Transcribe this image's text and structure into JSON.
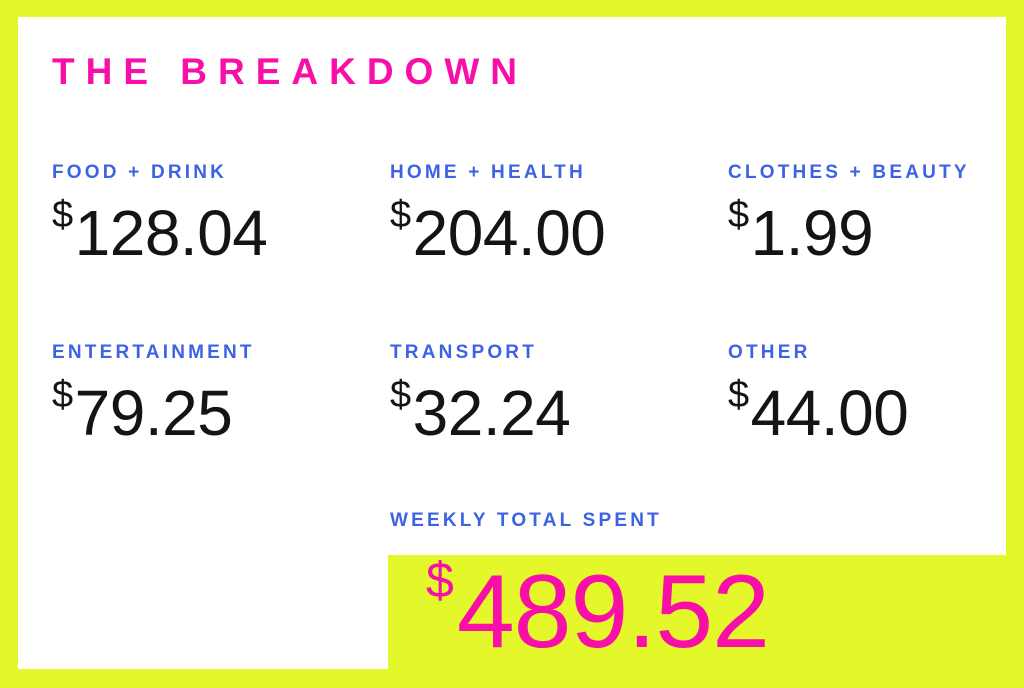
{
  "page": {
    "title": "THE BREAKDOWN",
    "background_color": "#E3F72B",
    "card_color": "#FFFFFF",
    "accent_pink": "#F70FA8",
    "accent_blue": "#3D63E4",
    "amount_color": "#141414",
    "currency": "$"
  },
  "cells": [
    {
      "label": "FOOD + DRINK",
      "currency": "$",
      "amount": "128.04"
    },
    {
      "label": "HOME + HEALTH",
      "currency": "$",
      "amount": "204.00"
    },
    {
      "label": "CLOTHES + BEAUTY",
      "currency": "$",
      "amount": "1.99"
    },
    {
      "label": "ENTERTAINMENT",
      "currency": "$",
      "amount": "79.25"
    },
    {
      "label": "TRANSPORT",
      "currency": "$",
      "amount": "32.24"
    },
    {
      "label": "OTHER",
      "currency": "$",
      "amount": "44.00"
    }
  ],
  "total": {
    "label": "WEEKLY TOTAL SPENT",
    "currency": "$",
    "amount": "489.52"
  },
  "chart_data": {
    "type": "table",
    "title": "THE BREAKDOWN",
    "categories": [
      "FOOD + DRINK",
      "HOME + HEALTH",
      "CLOTHES + BEAUTY",
      "ENTERTAINMENT",
      "TRANSPORT",
      "OTHER"
    ],
    "values": [
      128.04,
      204.0,
      1.99,
      79.25,
      32.24,
      44.0
    ],
    "currency": "$",
    "total_label": "WEEKLY TOTAL SPENT",
    "total_value": 489.52
  }
}
